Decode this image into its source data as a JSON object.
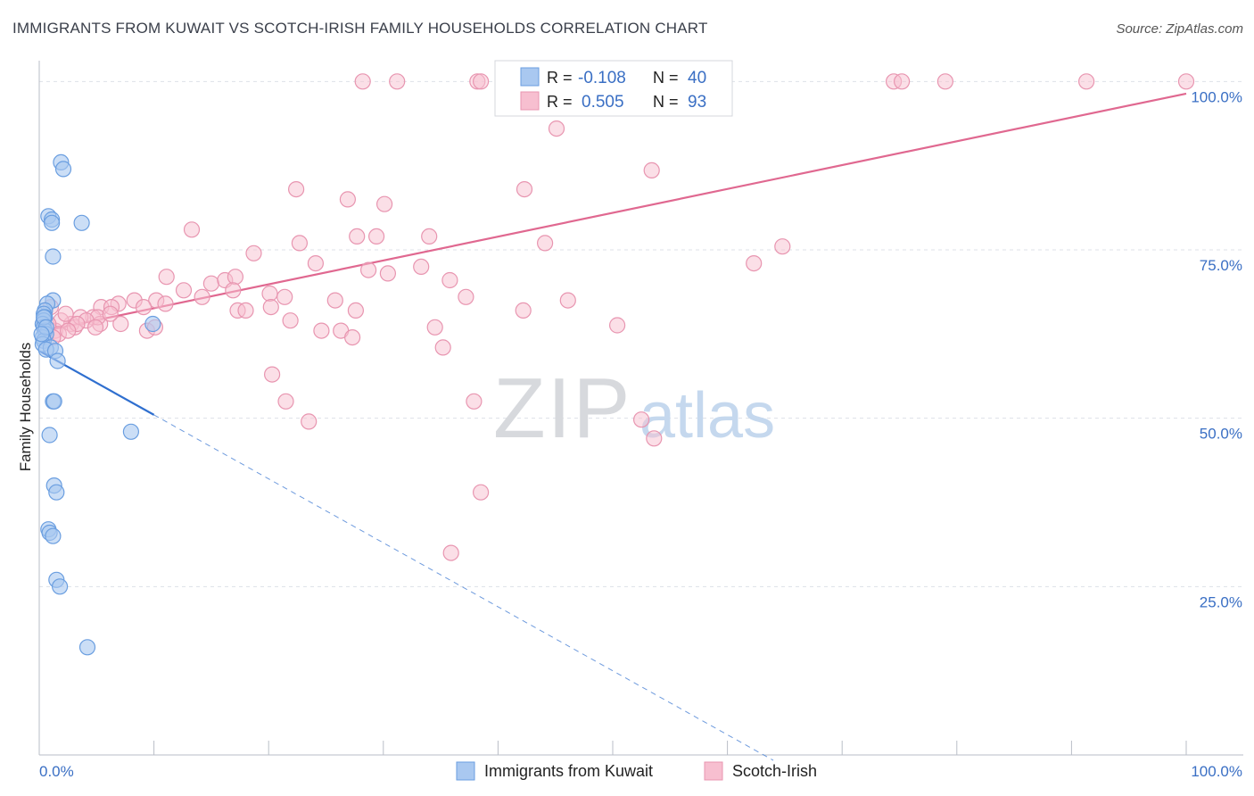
{
  "title": "IMMIGRANTS FROM KUWAIT VS SCOTCH-IRISH FAMILY HOUSEHOLDS CORRELATION CHART",
  "source": "Source: ZipAtlas.com",
  "watermark": {
    "zip": "ZIP",
    "atlas": "atlas"
  },
  "colors": {
    "blue_fill": "#a9c8f0",
    "blue_stroke": "#6a9ee0",
    "blue_line": "#2f6fcf",
    "pink_fill": "#f7bfd0",
    "pink_stroke": "#e895b0",
    "pink_line": "#e06890",
    "value_text": "#3a6fc4",
    "grid": "#dde1e7"
  },
  "legend_top": {
    "rows": [
      {
        "r_label": "R =",
        "r_value": "-0.108",
        "n_label": "N =",
        "n_value": "40"
      },
      {
        "r_label": "R =",
        "r_value": "0.505",
        "n_label": "N =",
        "n_value": "93"
      }
    ]
  },
  "legend_bottom": [
    "Immigrants from Kuwait",
    "Scotch-Irish"
  ],
  "chart_data": {
    "type": "scatter",
    "xlabel": "",
    "ylabel": "Family Households",
    "x_tick_labels": [
      "0.0%",
      "100.0%"
    ],
    "y_tick_labels": [
      "25.0%",
      "50.0%",
      "75.0%",
      "100.0%"
    ],
    "y_ticks": [
      25,
      50,
      75,
      100
    ],
    "xlim": [
      0,
      100
    ],
    "ylim": [
      0,
      101.5
    ],
    "grid": true,
    "legend_position": "top-center",
    "series": [
      {
        "name": "Immigrants from Kuwait",
        "color": "blue",
        "trend": {
          "x0": 0,
          "y0": 60,
          "x1": 10,
          "y1": 50.5,
          "dash_to_x": 64
        },
        "points": [
          [
            1.9,
            88
          ],
          [
            2.1,
            87
          ],
          [
            0.8,
            80
          ],
          [
            1.1,
            79.5
          ],
          [
            1.1,
            79
          ],
          [
            3.7,
            79
          ],
          [
            1.2,
            74
          ],
          [
            1.2,
            67.5
          ],
          [
            0.7,
            67
          ],
          [
            0.5,
            66
          ],
          [
            0.4,
            65.5
          ],
          [
            0.5,
            65
          ],
          [
            0.4,
            64.5
          ],
          [
            0.3,
            64
          ],
          [
            0.4,
            63.5
          ],
          [
            0.5,
            63
          ],
          [
            0.6,
            62.5
          ],
          [
            0.3,
            62
          ],
          [
            0.4,
            61.5
          ],
          [
            0.3,
            61
          ],
          [
            1.0,
            60.5
          ],
          [
            0.6,
            60.2
          ],
          [
            1.4,
            60
          ],
          [
            1.6,
            58.5
          ],
          [
            9.9,
            64
          ],
          [
            1.2,
            52.5
          ],
          [
            1.3,
            52.5
          ],
          [
            8.0,
            48
          ],
          [
            0.9,
            47.5
          ],
          [
            1.3,
            40
          ],
          [
            1.5,
            39
          ],
          [
            0.8,
            33.5
          ],
          [
            0.9,
            33
          ],
          [
            1.2,
            32.5
          ],
          [
            1.5,
            26
          ],
          [
            1.8,
            25
          ],
          [
            4.2,
            16
          ],
          [
            0.4,
            65
          ],
          [
            0.6,
            63.5
          ],
          [
            0.2,
            62.5
          ]
        ]
      },
      {
        "name": "Scotch-Irish",
        "color": "pink",
        "trend": {
          "x0": 0,
          "y0": 62.8,
          "x1": 100,
          "y1": 98.2
        },
        "points": [
          [
            28.2,
            100
          ],
          [
            31.2,
            100
          ],
          [
            38.2,
            100
          ],
          [
            38.5,
            100
          ],
          [
            40.6,
            100
          ],
          [
            55.8,
            100
          ],
          [
            56.0,
            100
          ],
          [
            74.5,
            100
          ],
          [
            75.2,
            100
          ],
          [
            79.0,
            100
          ],
          [
            91.3,
            100
          ],
          [
            100,
            100
          ],
          [
            44.6,
            98
          ],
          [
            45.1,
            93
          ],
          [
            53.4,
            86.8
          ],
          [
            22.4,
            84
          ],
          [
            26.9,
            82.5
          ],
          [
            30.1,
            81.8
          ],
          [
            42.3,
            84
          ],
          [
            13.3,
            78
          ],
          [
            27.7,
            77
          ],
          [
            29.4,
            77
          ],
          [
            34.0,
            77
          ],
          [
            22.7,
            76
          ],
          [
            44.1,
            76
          ],
          [
            64.8,
            75.5
          ],
          [
            18.7,
            74.5
          ],
          [
            24.1,
            73
          ],
          [
            11.1,
            71
          ],
          [
            28.7,
            72
          ],
          [
            33.3,
            72.5
          ],
          [
            30.4,
            71.5
          ],
          [
            15.0,
            70
          ],
          [
            16.2,
            70.5
          ],
          [
            17.1,
            71
          ],
          [
            35.8,
            70.5
          ],
          [
            12.6,
            69
          ],
          [
            14.2,
            68
          ],
          [
            16.9,
            69
          ],
          [
            20.1,
            68.5
          ],
          [
            21.4,
            68
          ],
          [
            25.8,
            67.5
          ],
          [
            37.2,
            68
          ],
          [
            62.3,
            73
          ],
          [
            10.2,
            67.5
          ],
          [
            11.0,
            67
          ],
          [
            8.3,
            67.5
          ],
          [
            6.9,
            67
          ],
          [
            9.1,
            66.5
          ],
          [
            5.4,
            66.5
          ],
          [
            4.7,
            65
          ],
          [
            6.3,
            66.5
          ],
          [
            17.3,
            66
          ],
          [
            18.0,
            66
          ],
          [
            20.2,
            66.5
          ],
          [
            27.6,
            66
          ],
          [
            21.9,
            64.5
          ],
          [
            24.6,
            63
          ],
          [
            7.1,
            64
          ],
          [
            5.3,
            64
          ],
          [
            9.4,
            63
          ],
          [
            10.1,
            63.5
          ],
          [
            26.3,
            63
          ],
          [
            27.3,
            62
          ],
          [
            34.5,
            63.5
          ],
          [
            35.2,
            60.5
          ],
          [
            50.4,
            63.8
          ],
          [
            46.1,
            67.5
          ],
          [
            20.3,
            56.5
          ],
          [
            21.5,
            52.5
          ],
          [
            23.5,
            49.5
          ],
          [
            37.9,
            52.5
          ],
          [
            42.2,
            66
          ],
          [
            52.5,
            49.8
          ],
          [
            5.1,
            65
          ],
          [
            2.8,
            64
          ],
          [
            3.1,
            63.5
          ],
          [
            1.4,
            63
          ],
          [
            1.9,
            64.5
          ],
          [
            3.6,
            65
          ],
          [
            1.0,
            66.5
          ],
          [
            2.3,
            65.5
          ],
          [
            4.1,
            64.5
          ],
          [
            1.7,
            62.5
          ],
          [
            3.3,
            64
          ],
          [
            38.5,
            39
          ],
          [
            35.9,
            30
          ],
          [
            53.6,
            47
          ],
          [
            4.9,
            63.5
          ],
          [
            6.2,
            65.5
          ],
          [
            1.2,
            62
          ],
          [
            0.8,
            64
          ],
          [
            2.5,
            63
          ]
        ]
      }
    ]
  }
}
